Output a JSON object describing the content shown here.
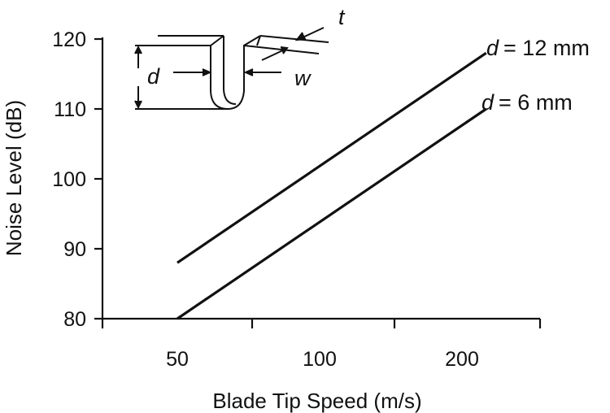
{
  "chart_data": {
    "type": "line",
    "xlabel": "Blade Tip Speed (m/s)",
    "ylabel": "Noise Level (dB)",
    "x_scale": "log",
    "x_ticks": [
      50,
      100,
      200
    ],
    "y_ticks": [
      80,
      90,
      100,
      110,
      120
    ],
    "ylim": [
      80,
      120
    ],
    "grid": false,
    "series": [
      {
        "name": "d = 12 mm",
        "label_var": "d",
        "label_rest": "= 12 mm",
        "x": [
          50,
          225
        ],
        "y": [
          88,
          118
        ]
      },
      {
        "name": "d = 6 mm",
        "label_var": "d",
        "label_rest": "= 6 mm",
        "x": [
          50,
          225
        ],
        "y": [
          80,
          110
        ]
      }
    ],
    "inset": {
      "labels": {
        "d": "d",
        "w": "w",
        "t": "t"
      }
    }
  }
}
